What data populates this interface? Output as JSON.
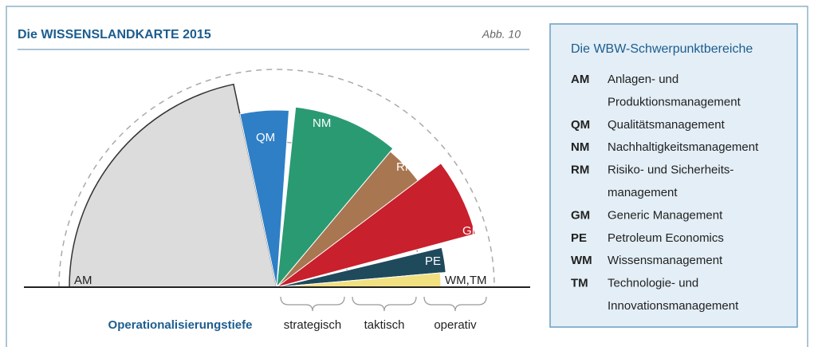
{
  "header": {
    "title": "Die WISSENSLANDKARTE 2015",
    "figure_label": "Abb. 10"
  },
  "diagram": {
    "segment_labels": [
      "AM",
      "QM",
      "NM",
      "RM",
      "GM",
      "PE",
      "WM,TM"
    ],
    "axis_label": "Operationalisierungstiefe",
    "depth_levels": [
      "strategisch",
      "taktisch",
      "operativ"
    ]
  },
  "legend": {
    "title": "Die WBW-Schwerpunktbereiche",
    "items": [
      {
        "code": "AM",
        "lines": [
          "Anlagen- und",
          "Produktionsmanagement"
        ]
      },
      {
        "code": "QM",
        "lines": [
          "Qualitätsmanagement"
        ]
      },
      {
        "code": "NM",
        "lines": [
          "Nachhaltigkeitsmanagement"
        ]
      },
      {
        "code": "RM",
        "lines": [
          "Risiko- und Sicherheits-",
          "management"
        ]
      },
      {
        "code": "GM",
        "lines": [
          "Generic Management"
        ]
      },
      {
        "code": "PE",
        "lines": [
          "Petroleum Economics"
        ]
      },
      {
        "code": "WM",
        "lines": [
          "Wissensmanagement"
        ]
      },
      {
        "code": "TM",
        "lines": [
          "Technologie- und",
          "Innovationsmanagement"
        ]
      }
    ]
  }
}
